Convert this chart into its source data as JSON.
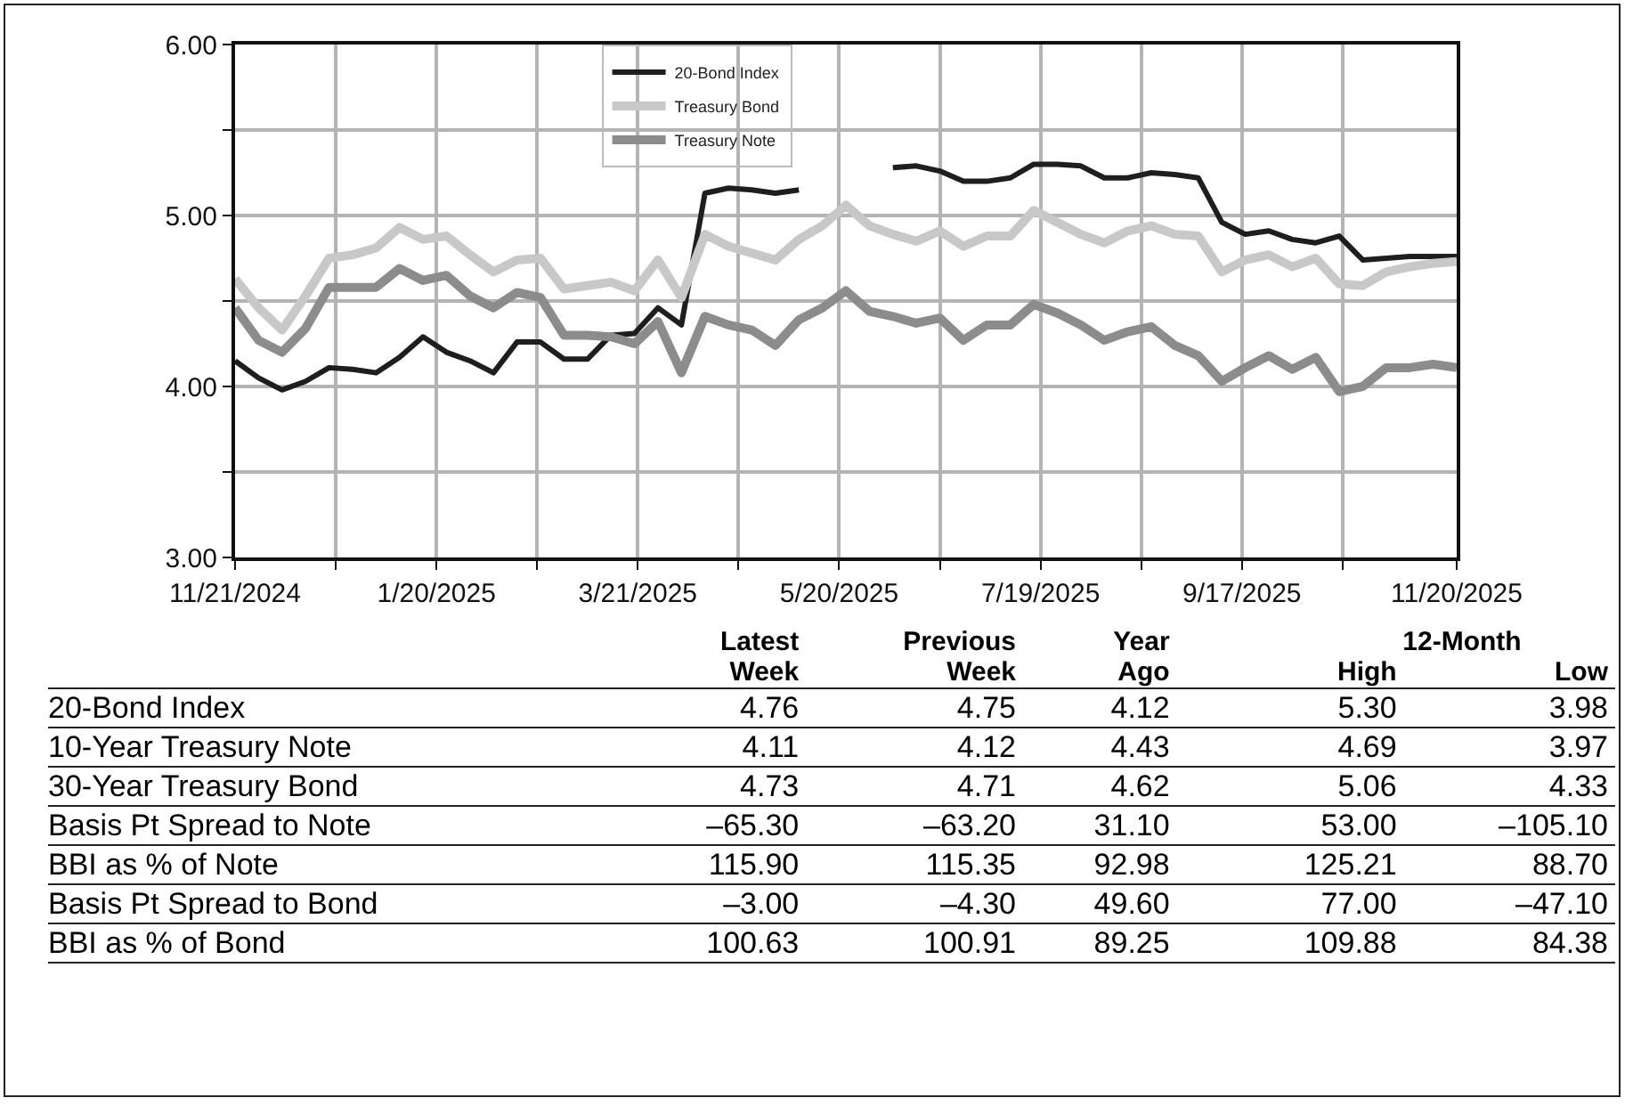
{
  "chart_data": [
    {
      "type": "line",
      "x": [
        "2024-11-21",
        "2024-11-28",
        "2024-12-05",
        "2024-12-12",
        "2024-12-19",
        "2024-12-26",
        "2025-01-02",
        "2025-01-09",
        "2025-01-16",
        "2025-01-23",
        "2025-01-30",
        "2025-02-06",
        "2025-02-13",
        "2025-02-20",
        "2025-02-27",
        "2025-03-06",
        "2025-03-13",
        "2025-03-20",
        "2025-03-27",
        "2025-04-03",
        "2025-04-10",
        "2025-04-17",
        "2025-04-24",
        "2025-05-01",
        "2025-05-08",
        "2025-05-15",
        "2025-05-22",
        "2025-05-29",
        "2025-06-05",
        "2025-06-12",
        "2025-06-19",
        "2025-06-26",
        "2025-07-03",
        "2025-07-10",
        "2025-07-17",
        "2025-07-24",
        "2025-07-31",
        "2025-08-07",
        "2025-08-14",
        "2025-08-21",
        "2025-08-28",
        "2025-09-04",
        "2025-09-11",
        "2025-09-18",
        "2025-09-25",
        "2025-10-02",
        "2025-10-09",
        "2025-10-16",
        "2025-10-23",
        "2025-10-30",
        "2025-11-06",
        "2025-11-13",
        "2025-11-20"
      ],
      "series": [
        {
          "name": "20-Bond Index",
          "color": "#1e1e1e",
          "values": [
            4.15,
            4.05,
            3.98,
            4.03,
            4.11,
            4.1,
            4.08,
            4.17,
            4.29,
            4.2,
            4.15,
            4.08,
            4.26,
            4.26,
            4.16,
            4.16,
            4.3,
            4.31,
            4.46,
            4.36,
            5.13,
            5.16,
            5.15,
            5.13,
            5.15,
            null,
            null,
            null,
            5.28,
            5.29,
            5.26,
            5.2,
            5.2,
            5.22,
            5.3,
            5.3,
            5.29,
            5.22,
            5.22,
            5.25,
            5.24,
            5.22,
            4.96,
            4.89,
            4.91,
            4.86,
            4.84,
            4.88,
            4.74,
            4.75,
            4.76,
            4.76,
            4.76
          ]
        },
        {
          "name": "Treasury Bond",
          "color": "#c8c8c8",
          "values": [
            4.63,
            4.46,
            4.33,
            4.53,
            4.75,
            4.77,
            4.81,
            4.93,
            4.86,
            4.88,
            4.77,
            4.67,
            4.74,
            4.75,
            4.57,
            4.59,
            4.61,
            4.56,
            4.74,
            4.52,
            4.89,
            4.82,
            4.78,
            4.74,
            4.86,
            4.94,
            5.06,
            4.94,
            4.89,
            4.85,
            4.91,
            4.82,
            4.88,
            4.88,
            5.03,
            4.96,
            4.89,
            4.84,
            4.91,
            4.94,
            4.89,
            4.88,
            4.67,
            4.74,
            4.77,
            4.7,
            4.75,
            4.6,
            4.59,
            4.67,
            4.7,
            4.72,
            4.73
          ]
        },
        {
          "name": "Treasury Note",
          "color": "#8c8c8c",
          "values": [
            4.46,
            4.27,
            4.2,
            4.34,
            4.58,
            4.58,
            4.58,
            4.69,
            4.62,
            4.65,
            4.53,
            4.46,
            4.55,
            4.52,
            4.3,
            4.3,
            4.29,
            4.25,
            4.38,
            4.08,
            4.41,
            4.36,
            4.33,
            4.24,
            4.39,
            4.46,
            4.56,
            4.44,
            4.41,
            4.37,
            4.4,
            4.27,
            4.36,
            4.36,
            4.48,
            4.43,
            4.36,
            4.27,
            4.32,
            4.35,
            4.24,
            4.18,
            4.03,
            4.11,
            4.18,
            4.1,
            4.17,
            3.97,
            4.0,
            4.11,
            4.11,
            4.13,
            4.11
          ]
        }
      ],
      "xlim": [
        "2024-11-21",
        "2025-11-20"
      ],
      "xticks": [
        {
          "value": "2024-11-21",
          "label": "11/21/2024"
        },
        {
          "value": "2024-12-21",
          "label": null
        },
        {
          "value": "2025-01-20",
          "label": "1/20/2025"
        },
        {
          "value": "2025-02-19",
          "label": null
        },
        {
          "value": "2025-03-21",
          "label": "3/21/2025"
        },
        {
          "value": "2025-04-20",
          "label": null
        },
        {
          "value": "2025-05-20",
          "label": "5/20/2025"
        },
        {
          "value": "2025-06-19",
          "label": null
        },
        {
          "value": "2025-07-19",
          "label": "7/19/2025"
        },
        {
          "value": "2025-08-18",
          "label": null
        },
        {
          "value": "2025-09-17",
          "label": "9/17/2025"
        },
        {
          "value": "2025-10-17",
          "label": null
        },
        {
          "value": "2025-11-20",
          "label": "11/20/2025"
        }
      ],
      "ylim": [
        3,
        6
      ],
      "yticks": [
        {
          "value": 3,
          "label": "3.00"
        },
        {
          "value": 3.5,
          "label": null
        },
        {
          "value": 4,
          "label": "4.00"
        },
        {
          "value": 4.5,
          "label": null
        },
        {
          "value": 5,
          "label": "5.00"
        },
        {
          "value": 5.5,
          "label": null
        },
        {
          "value": 6,
          "label": "6.00"
        }
      ],
      "grid": true,
      "legend": "top",
      "marker": "none",
      "line_style": "solid"
    },
    {
      "type": "other",
      "categories": [
        "20-Bond Index",
        "10-Year Treasury Note",
        "30-Year Treasury Bond",
        "Basis Pt Spread to Note",
        "BBI as % of Note",
        "Basis Pt Spread to Bond",
        "BBI as % of Bond"
      ],
      "annotations": [
        "12-Month"
      ],
      "series": [
        {
          "name": "Latest Week",
          "values": [
            4.76,
            4.11,
            4.73,
            -65.3,
            115.9,
            -3,
            100.63
          ],
          "value_labels": [
            "4.76",
            "4.11",
            "4.73",
            "–65.30",
            "115.90",
            "–3.00",
            "100.63"
          ]
        },
        {
          "name": "Previous Week",
          "values": [
            4.75,
            4.12,
            4.71,
            -63.2,
            115.35,
            -4.3,
            100.91
          ],
          "value_labels": [
            "4.75",
            "4.12",
            "4.71",
            "–63.20",
            "115.35",
            "–4.30",
            "100.91"
          ]
        },
        {
          "name": "Year Ago",
          "values": [
            4.12,
            4.43,
            4.62,
            31.1,
            92.98,
            49.6,
            89.25
          ],
          "value_labels": [
            "4.12",
            "4.43",
            "4.62",
            "31.10",
            "92.98",
            "49.60",
            "89.25"
          ]
        },
        {
          "name": "High",
          "values": [
            5.3,
            4.69,
            5.06,
            53,
            125.21,
            77,
            109.88
          ],
          "value_labels": [
            "5.30",
            "4.69",
            "5.06",
            "53.00",
            "125.21",
            "77.00",
            "109.88"
          ]
        },
        {
          "name": "Low",
          "values": [
            3.98,
            3.97,
            4.33,
            -105.1,
            88.7,
            -47.1,
            84.38
          ],
          "value_labels": [
            "3.98",
            "3.97",
            "4.33",
            "–105.10",
            "88.70",
            "–47.10",
            "84.38"
          ]
        }
      ]
    }
  ]
}
